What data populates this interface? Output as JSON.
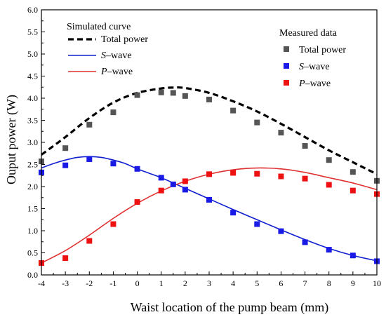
{
  "chart_data": {
    "type": "line",
    "xlabel": "Waist location of the pump beam (mm)",
    "ylabel": "Ouput power (W)",
    "xlim": [
      -4,
      10
    ],
    "ylim": [
      0,
      6
    ],
    "xticks": [
      -4,
      -3,
      -2,
      -1,
      0,
      1,
      2,
      3,
      4,
      5,
      6,
      7,
      8,
      9,
      10
    ],
    "yticks": [
      "0.0",
      "0.5",
      "1.0",
      "1.5",
      "2.0",
      "2.5",
      "3.0",
      "3.5",
      "4.0",
      "4.5",
      "5.0",
      "5.5",
      "6.0"
    ],
    "legend_simulated": {
      "heading": "Simulated curve",
      "items": [
        {
          "name": "Total power",
          "prefix": "",
          "suffix": ""
        },
        {
          "name": "S–wave",
          "prefix": "S",
          "suffix": "–wave"
        },
        {
          "name": "P–wave",
          "prefix": "P",
          "suffix": "–wave"
        }
      ]
    },
    "legend_measured": {
      "heading": "Measured data",
      "items": [
        {
          "name": "Total power",
          "prefix": "",
          "suffix": ""
        },
        {
          "name": "S–wave",
          "prefix": "S",
          "suffix": "–wave"
        },
        {
          "name": "P–wave",
          "prefix": "P",
          "suffix": "–wave"
        }
      ]
    },
    "simulated": [
      {
        "key": "total",
        "color": "#000000",
        "style": "dashed",
        "x": [
          -4,
          -3,
          -2,
          -1,
          0,
          1,
          1.5,
          2,
          3,
          4,
          5,
          6,
          7,
          8,
          9,
          10
        ],
        "y": [
          2.72,
          3.12,
          3.55,
          3.9,
          4.12,
          4.22,
          4.24,
          4.23,
          4.12,
          3.93,
          3.7,
          3.42,
          3.12,
          2.82,
          2.55,
          2.28
        ]
      },
      {
        "key": "s",
        "color": "#1020d0",
        "style": "solid",
        "x": [
          -4,
          -3.5,
          -3,
          -2.5,
          -2,
          -1.5,
          -1,
          -0.5,
          0,
          0.5,
          1,
          2,
          3,
          4,
          5,
          6,
          7,
          8,
          9,
          10
        ],
        "y": [
          2.42,
          2.52,
          2.6,
          2.66,
          2.68,
          2.66,
          2.6,
          2.52,
          2.4,
          2.3,
          2.2,
          1.96,
          1.72,
          1.48,
          1.25,
          1.02,
          0.8,
          0.6,
          0.44,
          0.32
        ]
      },
      {
        "key": "p",
        "color": "#e03030",
        "style": "solid",
        "x": [
          -4,
          -3,
          -2,
          -1,
          0,
          1,
          2,
          3,
          4,
          5,
          6,
          7,
          8,
          9,
          10
        ],
        "y": [
          0.27,
          0.55,
          0.9,
          1.28,
          1.62,
          1.9,
          2.12,
          2.28,
          2.38,
          2.42,
          2.4,
          2.32,
          2.2,
          2.08,
          1.93
        ]
      }
    ],
    "measured": [
      {
        "key": "total",
        "color": "#555555",
        "x": [
          -4,
          -3,
          -2,
          -1,
          0,
          1,
          1.5,
          2,
          3,
          4,
          5,
          6,
          7,
          8,
          9,
          10
        ],
        "y": [
          2.57,
          2.87,
          3.4,
          3.68,
          4.07,
          4.13,
          4.12,
          4.05,
          3.97,
          3.72,
          3.45,
          3.22,
          2.92,
          2.6,
          2.33,
          2.13
        ]
      },
      {
        "key": "s",
        "color": "#1a1ae6",
        "x": [
          -4,
          -3,
          -2,
          -1,
          0,
          1,
          1.5,
          2,
          3,
          4,
          5,
          6,
          7,
          8,
          9,
          10
        ],
        "y": [
          2.32,
          2.48,
          2.62,
          2.52,
          2.4,
          2.2,
          2.05,
          1.93,
          1.7,
          1.41,
          1.15,
          0.99,
          0.74,
          0.57,
          0.44,
          0.31
        ]
      },
      {
        "key": "p",
        "color": "#ee1111",
        "x": [
          -4,
          -3,
          -2,
          -1,
          0,
          1,
          2,
          3,
          4,
          5,
          6,
          7,
          8,
          9,
          10
        ],
        "y": [
          0.27,
          0.38,
          0.77,
          1.15,
          1.65,
          1.91,
          2.12,
          2.28,
          2.31,
          2.29,
          2.23,
          2.18,
          2.04,
          1.91,
          1.83
        ]
      }
    ]
  }
}
